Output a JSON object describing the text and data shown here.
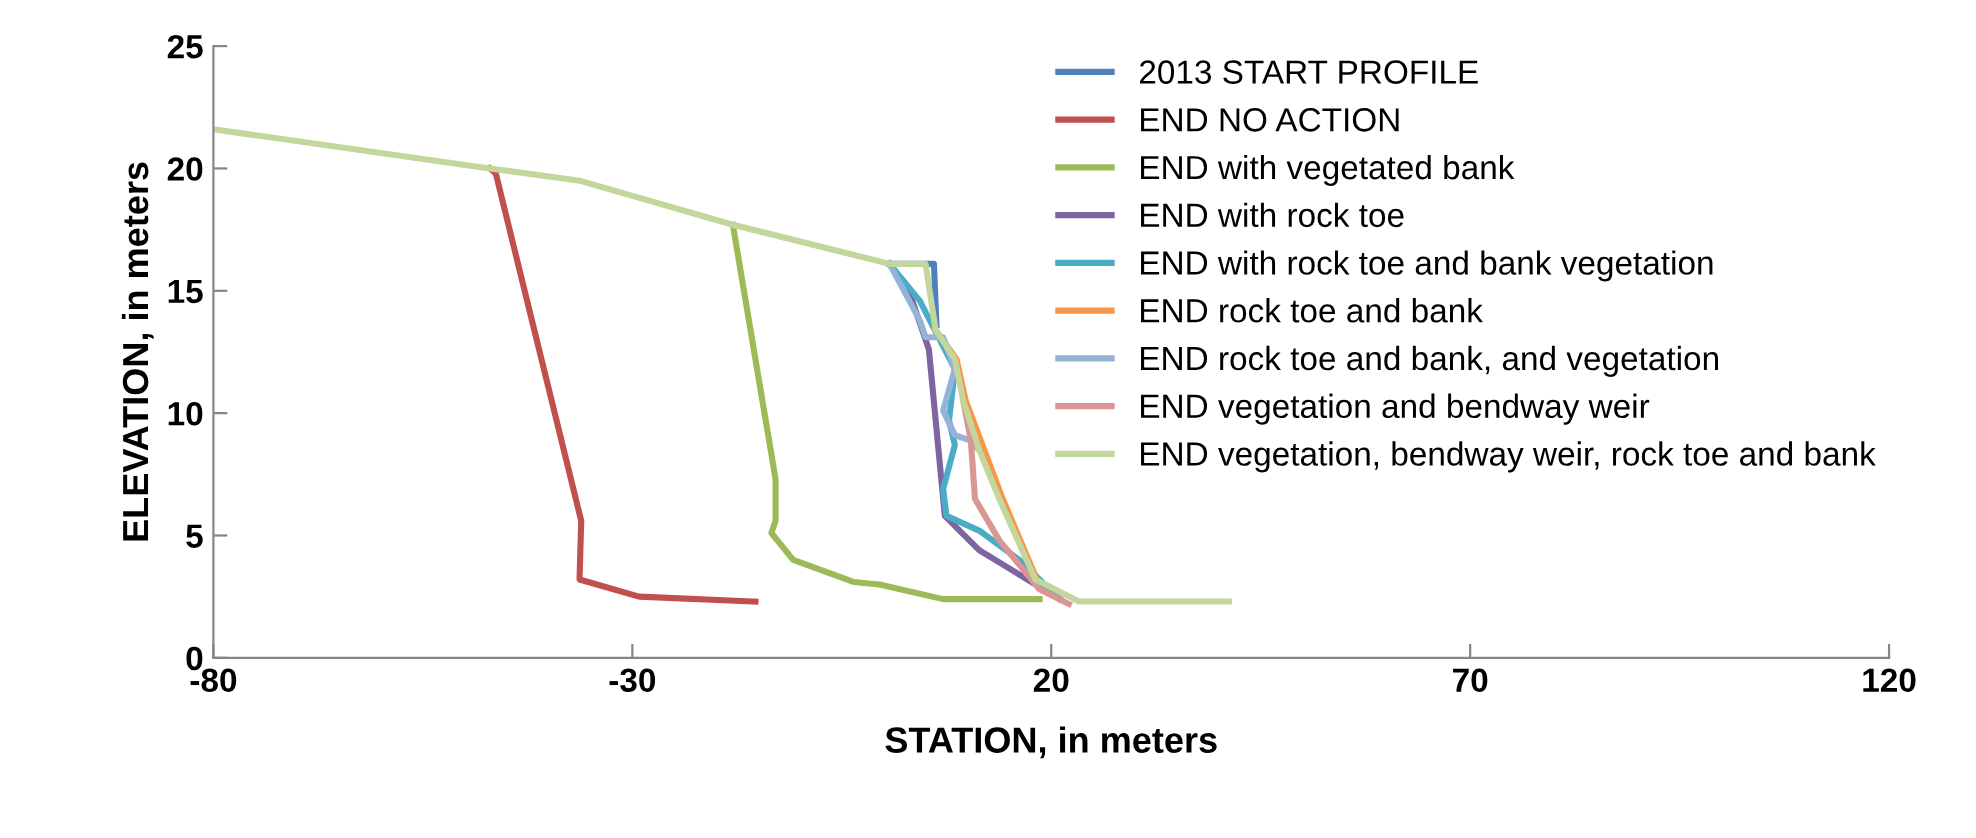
{
  "chart_data": {
    "type": "line",
    "xlabel": "STATION, in meters",
    "ylabel": "ELEVATION, in meters",
    "xlim": [
      -80,
      120
    ],
    "xticks": [
      -80,
      -30,
      20,
      70,
      120
    ],
    "ylim": [
      0,
      25
    ],
    "yticks": [
      0,
      5,
      10,
      15,
      20,
      25
    ],
    "grid": false,
    "legend": "top right",
    "marker": "none",
    "line_style": "solid",
    "series": [
      {
        "name": "2013 START PROFILE",
        "color": "#4f81bd",
        "x": [
          0.7,
          6.0,
          6.3
        ],
        "values": [
          16.1,
          16.1,
          13.6
        ]
      },
      {
        "name": "END NO ACTION",
        "color": "#c0504d",
        "x": [
          -47,
          -46.3,
          -36.1,
          -36.3,
          -29.2,
          -15.3
        ],
        "values": [
          20.0,
          19.8,
          5.6,
          3.2,
          2.5,
          2.3
        ]
      },
      {
        "name": "END with vegetated bank",
        "color": "#9bbb59",
        "x": [
          -18,
          -12.9,
          -12.9,
          -13.4,
          -10.8,
          -3.6,
          -0.5,
          7.1,
          18.6
        ],
        "values": [
          17.7,
          7.3,
          5.6,
          5.1,
          4.0,
          3.1,
          3.0,
          2.4,
          2.4
        ]
      },
      {
        "name": "END with rock toe",
        "color": "#8064a2",
        "x": [
          0.7,
          3.0,
          5.4,
          7.1,
          7.3,
          11.4,
          21.0
        ],
        "values": [
          16.1,
          15.0,
          12.6,
          6.5,
          5.8,
          4.4,
          2.4
        ]
      },
      {
        "name": "END with rock toe and bank vegetation",
        "color": "#4bacc6",
        "x": [
          0.7,
          4.3,
          8.5,
          7.8,
          8.5,
          7.1,
          7.5,
          11.4,
          16.2,
          21.0
        ],
        "values": [
          16.1,
          14.6,
          11.8,
          9.7,
          8.7,
          6.9,
          5.8,
          5.2,
          4.0,
          2.4
        ]
      },
      {
        "name": "END rock toe and bank",
        "color": "#f79646",
        "x": [
          6.2,
          8.7,
          9.8,
          12.0,
          14.2,
          18.3
        ],
        "values": [
          13.4,
          12.2,
          10.5,
          8.5,
          6.5,
          3.2
        ]
      },
      {
        "name": "END rock toe and bank, and vegetation",
        "color": "#95b3d7",
        "x": [
          0.7,
          4.3,
          5.0,
          7.1,
          8.5,
          7.1,
          8.5,
          10.2,
          11.4
        ],
        "values": [
          16.1,
          13.8,
          13.1,
          13.1,
          11.8,
          10.1,
          9.1,
          8.9,
          8.5
        ]
      },
      {
        "name": "END vegetation and bendway weir",
        "color": "#d99694",
        "x": [
          9.5,
          10.4,
          10.9,
          13.8,
          18.6,
          22.1
        ],
        "values": [
          10.5,
          8.9,
          6.5,
          4.8,
          2.8,
          2.2
        ]
      },
      {
        "name": "END vegetation, bendway weir, rock toe and bank",
        "color": "#c3d69b",
        "x": [
          -80,
          -47,
          -36.3,
          -18,
          0.7,
          5.0,
          6.2,
          8.5,
          9.5,
          11.4,
          13.8,
          18.1,
          23.3,
          41.2
        ],
        "values": [
          21.6,
          20.0,
          19.5,
          17.7,
          16.1,
          16.1,
          13.4,
          12.2,
          10.5,
          8.5,
          6.5,
          3.2,
          2.3,
          2.3
        ]
      }
    ]
  }
}
